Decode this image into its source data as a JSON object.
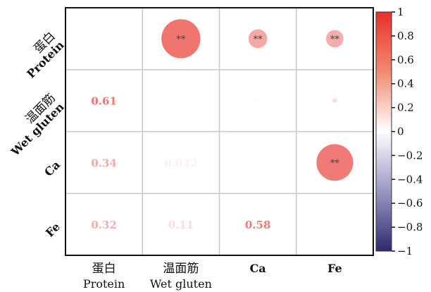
{
  "chart_data": {
    "type": "heatmap",
    "subtype": "correlation-matrix",
    "variables": [
      {
        "zh": "蛋白",
        "en": "Protein"
      },
      {
        "zh": "温面筋",
        "en": "Wet gluten"
      },
      {
        "zh": "",
        "en": "Ca"
      },
      {
        "zh": "",
        "en": "Fe"
      }
    ],
    "upper_triangle_display": "circles",
    "lower_triangle_display": "numbers",
    "cells": [
      {
        "row": 0,
        "col": 1,
        "r": 0.61,
        "label": "**"
      },
      {
        "row": 0,
        "col": 2,
        "r": 0.34,
        "label": "**"
      },
      {
        "row": 0,
        "col": 3,
        "r": 0.32,
        "label": "**"
      },
      {
        "row": 1,
        "col": 2,
        "r": 0.042,
        "label": ""
      },
      {
        "row": 1,
        "col": 3,
        "r": 0.11,
        "label": ""
      },
      {
        "row": 2,
        "col": 3,
        "r": 0.58,
        "label": "**"
      },
      {
        "row": 1,
        "col": 0,
        "r": 0.61,
        "label": "0.61"
      },
      {
        "row": 2,
        "col": 0,
        "r": 0.34,
        "label": "0.34"
      },
      {
        "row": 3,
        "col": 0,
        "r": 0.32,
        "label": "0.32"
      },
      {
        "row": 2,
        "col": 1,
        "r": 0.042,
        "label": "0.042"
      },
      {
        "row": 3,
        "col": 1,
        "r": 0.11,
        "label": "0.11"
      },
      {
        "row": 3,
        "col": 2,
        "r": 0.58,
        "label": "0.58"
      }
    ],
    "colorbar": {
      "range": [
        -1,
        1
      ],
      "ticks": [
        "1",
        "0.8",
        "0.6",
        "0.4",
        "0.2",
        "0",
        "−0.2",
        "−0.4",
        "−0.6",
        "−0.8",
        "−1"
      ],
      "colors": {
        "positive": "#e8312b",
        "zero": "#ffffff",
        "negative": "#2d2a6e"
      }
    },
    "grid": true,
    "legend": "right"
  }
}
